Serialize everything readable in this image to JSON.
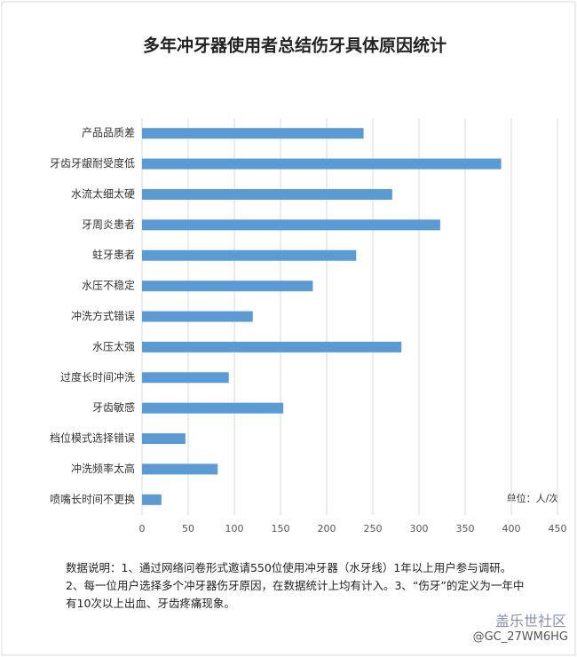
{
  "chart_data": {
    "type": "bar",
    "orientation": "horizontal",
    "title": "多年冲牙器使用者总结伤牙具体原因统计",
    "categories": [
      "产品品质差",
      "牙齿牙龈耐受度低",
      "水流太细太硬",
      "牙周炎患者",
      "蛀牙患者",
      "水压不稳定",
      "冲洗方式错误",
      "水压太强",
      "过度长时间冲洗",
      "牙齿敏感",
      "档位模式选择错误",
      "冲洗频率太高",
      "喷嘴长时间不更换"
    ],
    "values": [
      240,
      389,
      271,
      323,
      232,
      185,
      120,
      281,
      94,
      153,
      47,
      82,
      21
    ],
    "color": "#5b9bd5",
    "xlim": [
      0,
      450
    ],
    "xticks": [
      0,
      50,
      100,
      150,
      200,
      250,
      300,
      350,
      400,
      450
    ],
    "grid": true,
    "unit_label": "单位：人/次",
    "note": "数据说明：1、通过网络问卷形式邀请550位使用冲牙器（水牙线）1年以上用户参与调研。2、每一位用户选择多个冲牙器伤牙原因，在数据统计上均有计入。3、“伤牙”的定义为一年中有10次以上出血、牙齿疼痛现象。"
  },
  "watermark": {
    "brand": "盖乐世社区",
    "user": "@GC_27WM6HG"
  }
}
